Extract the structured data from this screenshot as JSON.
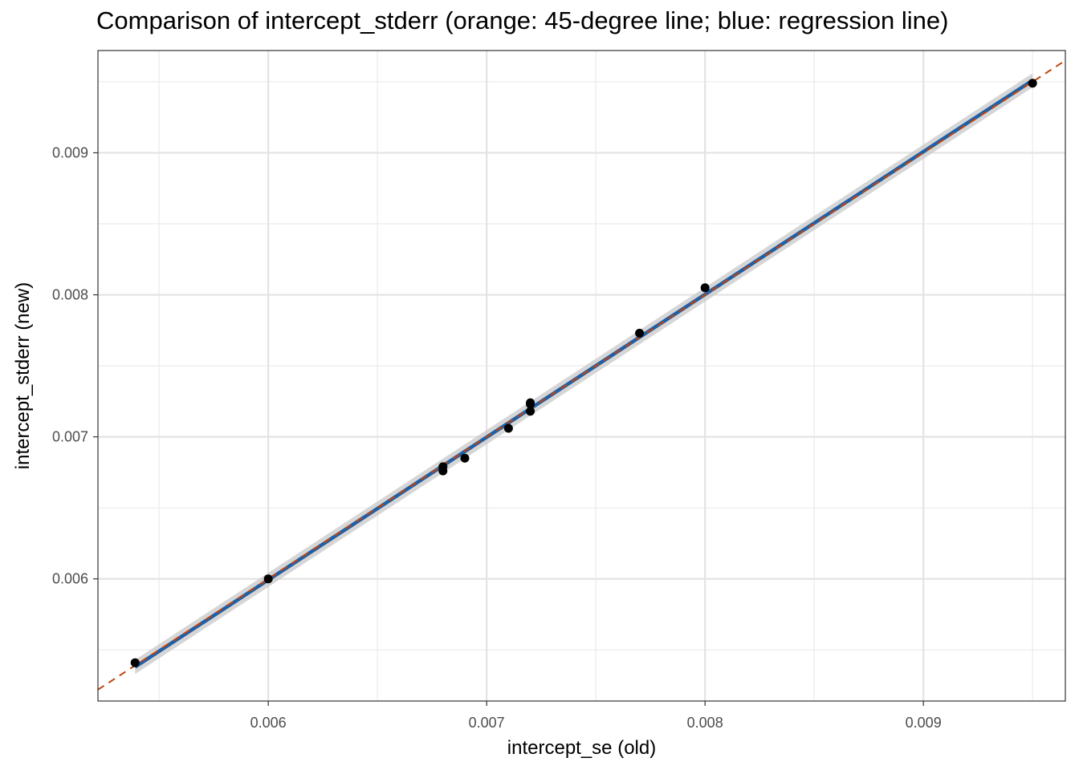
{
  "chart_data": {
    "type": "scatter",
    "title": "Comparison of intercept_stderr (orange: 45-degree line; blue: regression line)",
    "xlabel": "intercept_se (old)",
    "ylabel": "intercept_stderr (new)",
    "xlim": [
      0.00522,
      0.00965
    ],
    "ylim": [
      0.00514,
      0.00972
    ],
    "x_ticks": [
      0.006,
      0.007,
      0.008,
      0.009
    ],
    "x_tick_labels": [
      "0.006",
      "0.007",
      "0.008",
      "0.009"
    ],
    "y_ticks": [
      0.006,
      0.007,
      0.008,
      0.009
    ],
    "y_tick_labels": [
      "0.006",
      "0.007",
      "0.008",
      "0.009"
    ],
    "x_minor": [
      0.0055,
      0.0065,
      0.0075,
      0.0085,
      0.0095
    ],
    "y_minor": [
      0.0055,
      0.0065,
      0.0075,
      0.0085,
      0.0095
    ],
    "grid": true,
    "points": [
      {
        "x": 0.00539,
        "y": 0.00541
      },
      {
        "x": 0.006,
        "y": 0.006
      },
      {
        "x": 0.0068,
        "y": 0.00679
      },
      {
        "x": 0.0068,
        "y": 0.00676
      },
      {
        "x": 0.0069,
        "y": 0.00685
      },
      {
        "x": 0.0071,
        "y": 0.00706
      },
      {
        "x": 0.0072,
        "y": 0.00724
      },
      {
        "x": 0.0072,
        "y": 0.00723
      },
      {
        "x": 0.0072,
        "y": 0.00718
      },
      {
        "x": 0.0077,
        "y": 0.00773
      },
      {
        "x": 0.008,
        "y": 0.00805
      },
      {
        "x": 0.0095,
        "y": 0.00949
      }
    ],
    "reference_line": {
      "name": "45-degree line",
      "slope": 1,
      "intercept": 0,
      "color": "#c0430d",
      "style": "dashed"
    },
    "regression_line": {
      "name": "regression line",
      "x_range": [
        0.00539,
        0.0095
      ],
      "y_range": [
        0.00538,
        0.00951
      ],
      "color": "#1f5fa6",
      "ci_half_width": 5e-05
    },
    "colors": {
      "point": "#000000",
      "ci_band": "#c8c8c8",
      "grid": "#ebebeb",
      "panel_border": "#333333"
    }
  }
}
